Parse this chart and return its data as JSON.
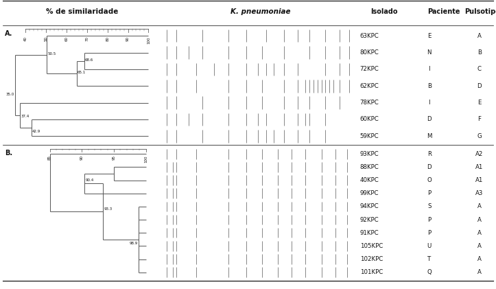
{
  "title_top": "% de similaridade",
  "title_middle": "K. pneumoniae",
  "col_isolado": "Isolado",
  "col_paciente": "Paciente",
  "col_pulsotipo": "Pulsotipo",
  "panel_A": {
    "label": "A.",
    "nodes": [
      {
        "name": "63KPC",
        "patient": "E",
        "pulsotype": "A",
        "y": 0
      },
      {
        "name": "80KPC",
        "patient": "N",
        "pulsotype": "B",
        "y": 1
      },
      {
        "name": "72KPC",
        "patient": "I",
        "pulsotype": "C",
        "y": 2
      },
      {
        "name": "62KPC",
        "patient": "B",
        "pulsotype": "D",
        "y": 3
      },
      {
        "name": "78KPC",
        "patient": "I",
        "pulsotype": "E",
        "y": 4
      },
      {
        "name": "60KPC",
        "patient": "D",
        "pulsotype": "F",
        "y": 5
      },
      {
        "name": "59KPC",
        "patient": "M",
        "pulsotype": "G",
        "y": 6
      }
    ],
    "bands_A": {
      "0": [
        0.04,
        0.09,
        0.22,
        0.35,
        0.44,
        0.54,
        0.63,
        0.7,
        0.76,
        0.84,
        0.91,
        0.96
      ],
      "1": [
        0.04,
        0.09,
        0.15,
        0.22,
        0.35,
        0.44,
        0.52,
        0.63,
        0.76,
        0.84,
        0.91,
        0.96
      ],
      "2": [
        0.04,
        0.09,
        0.19,
        0.28,
        0.35,
        0.44,
        0.5,
        0.54,
        0.58,
        0.63,
        0.7,
        0.84,
        0.91,
        0.96
      ],
      "3": [
        0.04,
        0.09,
        0.19,
        0.35,
        0.44,
        0.52,
        0.63,
        0.7,
        0.74,
        0.76,
        0.78,
        0.8,
        0.82,
        0.84,
        0.86,
        0.88,
        0.91,
        0.96
      ],
      "4": [
        0.04,
        0.09,
        0.22,
        0.35,
        0.44,
        0.52,
        0.63,
        0.7,
        0.76,
        0.84,
        0.91
      ],
      "5": [
        0.04,
        0.09,
        0.15,
        0.22,
        0.35,
        0.44,
        0.5,
        0.54,
        0.63,
        0.7,
        0.74,
        0.76,
        0.84
      ],
      "6": [
        0.04,
        0.09,
        0.22,
        0.35,
        0.44,
        0.5,
        0.54,
        0.58,
        0.63,
        0.7,
        0.76,
        0.84
      ]
    }
  },
  "panel_B": {
    "label": "B.",
    "nodes": [
      {
        "name": "93KPC",
        "patient": "R",
        "pulsotype": "A2",
        "y": 0
      },
      {
        "name": "88KPC",
        "patient": "D",
        "pulsotype": "A1",
        "y": 1
      },
      {
        "name": "40KPC",
        "patient": "O",
        "pulsotype": "A1",
        "y": 2
      },
      {
        "name": "99KPC",
        "patient": "P",
        "pulsotype": "A3",
        "y": 3
      },
      {
        "name": "94KPC",
        "patient": "S",
        "pulsotype": "A",
        "y": 4
      },
      {
        "name": "92KPC",
        "patient": "P",
        "pulsotype": "A",
        "y": 5
      },
      {
        "name": "91KPC",
        "patient": "P",
        "pulsotype": "A",
        "y": 6
      },
      {
        "name": "105KPC",
        "patient": "U",
        "pulsotype": "A",
        "y": 7
      },
      {
        "name": "102KPC",
        "patient": "T",
        "pulsotype": "A",
        "y": 8
      },
      {
        "name": "101KPC",
        "patient": "Q",
        "pulsotype": "A",
        "y": 9
      }
    ],
    "bands_B": {
      "0": [
        0.04,
        0.09,
        0.19,
        0.35,
        0.44,
        0.52,
        0.6,
        0.67,
        0.74,
        0.82,
        0.89,
        0.95
      ],
      "1": [
        0.04,
        0.07,
        0.09,
        0.19,
        0.35,
        0.44,
        0.52,
        0.6,
        0.67,
        0.74,
        0.82,
        0.89,
        0.95
      ],
      "2": [
        0.04,
        0.07,
        0.09,
        0.19,
        0.35,
        0.44,
        0.52,
        0.6,
        0.67,
        0.74,
        0.82,
        0.89,
        0.95
      ],
      "3": [
        0.04,
        0.07,
        0.09,
        0.19,
        0.35,
        0.44,
        0.52,
        0.6,
        0.67,
        0.74,
        0.82,
        0.89,
        0.95
      ],
      "4": [
        0.04,
        0.07,
        0.09,
        0.19,
        0.35,
        0.44,
        0.52,
        0.6,
        0.67,
        0.74,
        0.82,
        0.89,
        0.95
      ],
      "5": [
        0.04,
        0.07,
        0.09,
        0.19,
        0.35,
        0.44,
        0.52,
        0.6,
        0.67,
        0.74,
        0.82,
        0.89,
        0.95
      ],
      "6": [
        0.04,
        0.07,
        0.09,
        0.19,
        0.35,
        0.44,
        0.52,
        0.6,
        0.67,
        0.74,
        0.82,
        0.89,
        0.95
      ],
      "7": [
        0.04,
        0.07,
        0.09,
        0.19,
        0.35,
        0.44,
        0.52,
        0.6,
        0.67,
        0.74,
        0.82,
        0.89,
        0.95
      ],
      "8": [
        0.04,
        0.07,
        0.09,
        0.19,
        0.35,
        0.44,
        0.52,
        0.6,
        0.67,
        0.74,
        0.82,
        0.89,
        0.95
      ],
      "9": [
        0.04,
        0.07,
        0.09,
        0.19,
        0.35,
        0.44,
        0.52,
        0.6,
        0.67,
        0.74,
        0.82,
        0.89,
        0.95
      ]
    }
  },
  "bg_color": "#ffffff",
  "line_color": "#555555",
  "text_color": "#111111"
}
